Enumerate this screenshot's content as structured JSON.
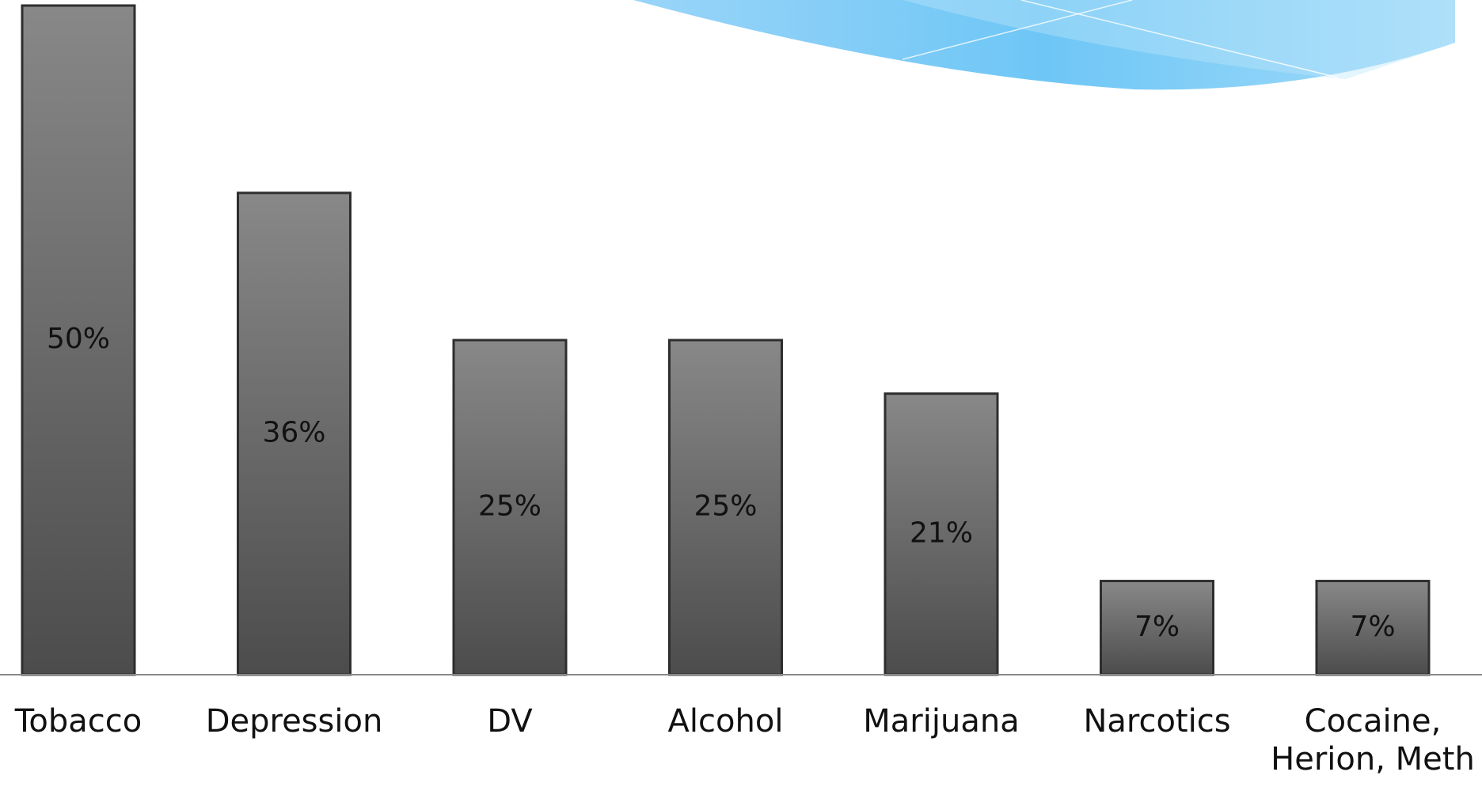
{
  "chart_data": {
    "type": "bar",
    "categories": [
      "Tobacco",
      "Depression",
      "DV",
      "Alcohol",
      "Marijuana",
      "Narcotics",
      "Cocaine, Herion, Meth"
    ],
    "values": [
      50,
      36,
      25,
      25,
      21,
      7,
      7
    ],
    "value_labels": [
      "50%",
      "36%",
      "25%",
      "25%",
      "21%",
      "7%",
      "7%"
    ],
    "color": "#6a6a6a"
  }
}
